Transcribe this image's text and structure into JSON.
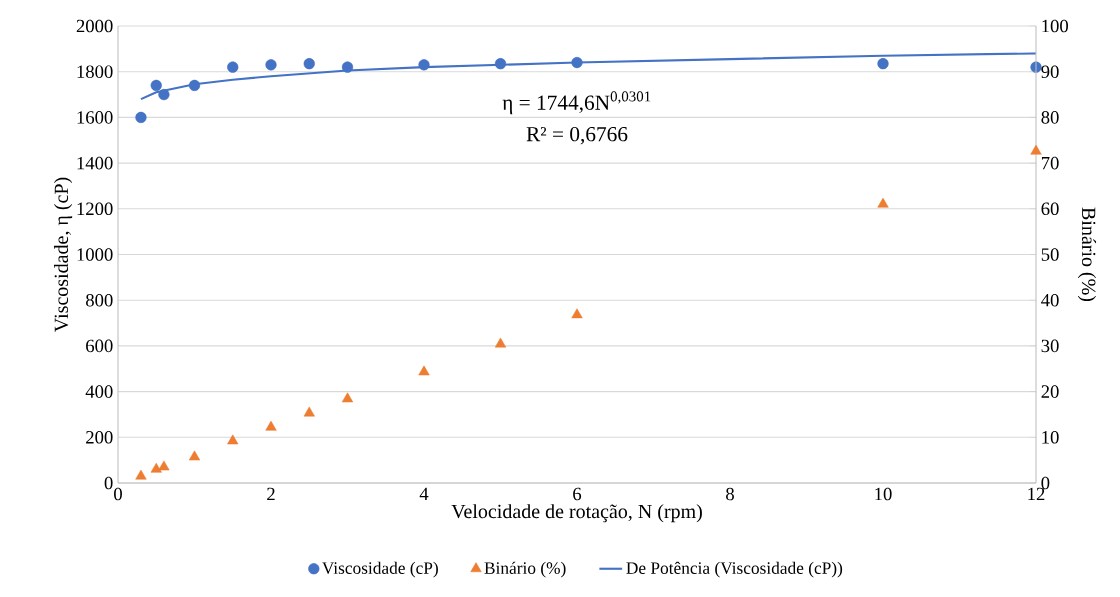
{
  "chart_data": {
    "type": "scatter",
    "xlabel": "Velocidade de rotação, N (rpm)",
    "ylabel": "Viscosidade, η (cP)",
    "y2label": "Binário (%)",
    "xlim": [
      0,
      12
    ],
    "xticks": [
      0,
      2,
      4,
      6,
      8,
      10,
      12
    ],
    "ylim": [
      0,
      2000
    ],
    "yticks": [
      0,
      200,
      400,
      600,
      800,
      1000,
      1200,
      1400,
      1600,
      1800,
      2000
    ],
    "y2lim": [
      0,
      100
    ],
    "y2ticks": [
      0,
      10,
      20,
      30,
      40,
      50,
      60,
      70,
      80,
      90,
      100
    ],
    "grid": "y",
    "legend": "bottom",
    "annotations": [
      "η = 1744,6N$^{0,0301}$",
      "R² = 0,6766"
    ],
    "series": [
      {
        "name": "Viscosidade (cP)",
        "marker": "circle",
        "color": "#4472c4",
        "x": [
          0.3,
          0.5,
          0.6,
          1,
          1.5,
          2,
          2.5,
          3,
          4,
          5,
          6,
          10,
          12
        ],
        "values": [
          1600,
          1740,
          1700,
          1740,
          1820,
          1830,
          1835,
          1820,
          1830,
          1835,
          1840,
          1835,
          1820
        ]
      },
      {
        "name": "Binário (%)",
        "marker": "triangle",
        "axis": "y2",
        "color": "#ed7d31",
        "x": [
          0.3,
          0.5,
          0.6,
          1,
          1.5,
          2,
          2.5,
          3,
          4,
          5,
          6,
          10,
          12
        ],
        "values": [
          1.5,
          3,
          3.5,
          5.7,
          9.2,
          12.2,
          15.3,
          18.4,
          24.3,
          30.4,
          36.8,
          61,
          72.6
        ]
      },
      {
        "name": "De Potência (Viscosidade (cP))",
        "type": "line",
        "marker": "none",
        "line_style": "solid",
        "color": "#4472c4",
        "x": [
          0.3,
          0.5,
          1,
          1.5,
          2,
          3,
          4,
          6,
          8,
          10,
          12
        ],
        "values": [
          1680,
          1710,
          1745,
          1765,
          1780,
          1805,
          1820,
          1840,
          1855,
          1870,
          1880
        ]
      }
    ]
  }
}
